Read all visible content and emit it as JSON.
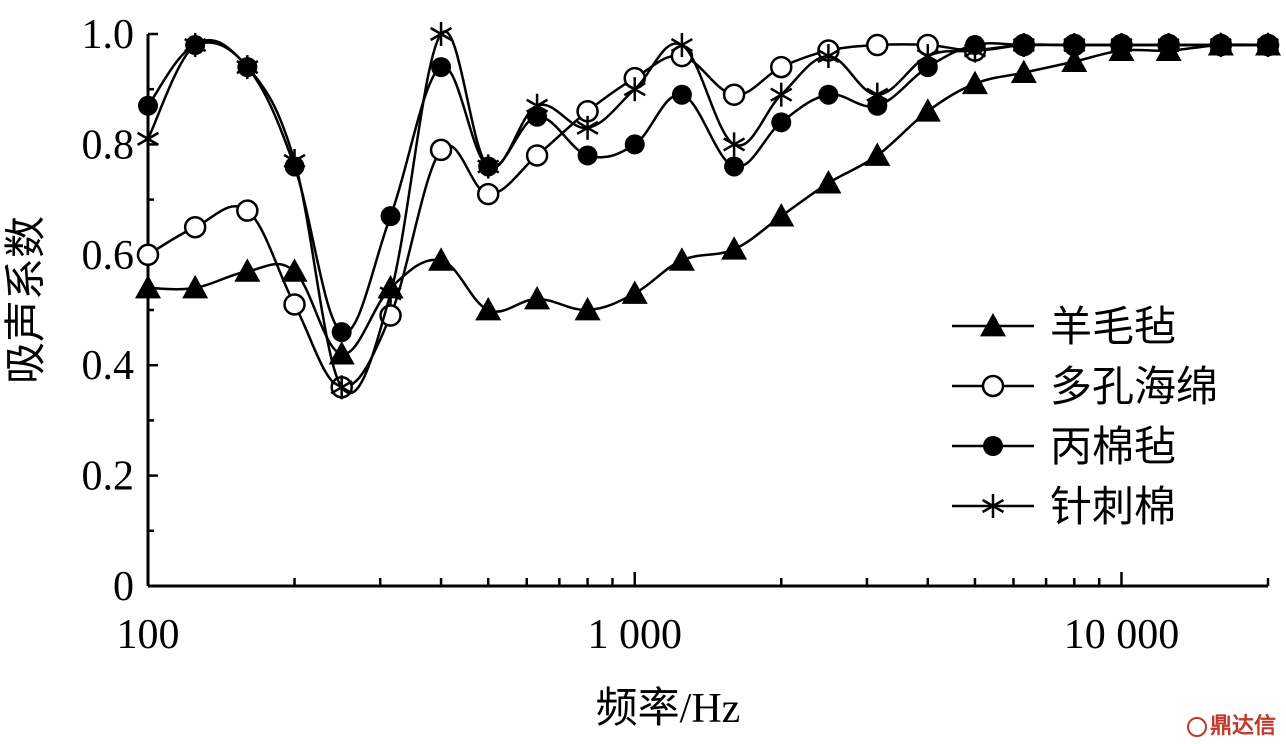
{
  "chart_data": {
    "type": "line",
    "xscale": "log",
    "xlim": [
      100,
      20000
    ],
    "ylim": [
      0,
      1.0
    ],
    "xlabel": "频率/Hz",
    "ylabel": "吸声系数",
    "x_ticks": [
      {
        "value": 100,
        "label": "100"
      },
      {
        "value": 1000,
        "label": "1 000"
      },
      {
        "value": 10000,
        "label": "10 000"
      }
    ],
    "y_ticks": [
      {
        "value": 0,
        "label": "0"
      },
      {
        "value": 0.2,
        "label": "0.2"
      },
      {
        "value": 0.4,
        "label": "0.4"
      },
      {
        "value": 0.6,
        "label": "0.6"
      },
      {
        "value": 0.8,
        "label": "0.8"
      },
      {
        "value": 1.0,
        "label": "1.0"
      }
    ],
    "legend_position": "right-middle",
    "x": [
      100,
      125,
      160,
      200,
      250,
      315,
      400,
      500,
      630,
      800,
      1000,
      1250,
      1600,
      2000,
      2500,
      3150,
      4000,
      5000,
      6300,
      8000,
      10000,
      12500,
      16000,
      20000
    ],
    "series": [
      {
        "name": "羊毛毡",
        "marker": "triangle",
        "values": [
          0.54,
          0.54,
          0.57,
          0.57,
          0.42,
          0.54,
          0.59,
          0.5,
          0.52,
          0.5,
          0.53,
          0.59,
          0.61,
          0.67,
          0.73,
          0.78,
          0.86,
          0.91,
          0.93,
          0.95,
          0.97,
          0.97,
          0.98,
          0.98
        ]
      },
      {
        "name": "多孔海绵",
        "marker": "open-circle",
        "values": [
          0.6,
          0.65,
          0.68,
          0.51,
          0.36,
          0.49,
          0.79,
          0.71,
          0.78,
          0.86,
          0.92,
          0.96,
          0.89,
          0.94,
          0.97,
          0.98,
          0.98,
          0.97,
          0.98,
          0.98,
          0.98,
          0.98,
          0.98,
          0.98
        ]
      },
      {
        "name": "丙棉毡",
        "marker": "filled-circle",
        "values": [
          0.87,
          0.98,
          0.94,
          0.76,
          0.46,
          0.67,
          0.94,
          0.76,
          0.85,
          0.78,
          0.8,
          0.89,
          0.76,
          0.84,
          0.89,
          0.87,
          0.94,
          0.98,
          0.98,
          0.98,
          0.98,
          0.98,
          0.98,
          0.98
        ]
      },
      {
        "name": "针刺棉",
        "marker": "asterisk",
        "values": [
          0.81,
          0.98,
          0.94,
          0.77,
          0.36,
          0.53,
          1.0,
          0.76,
          0.87,
          0.83,
          0.9,
          0.98,
          0.8,
          0.89,
          0.96,
          0.89,
          0.96,
          0.97,
          0.98,
          0.98,
          0.98,
          0.98,
          0.98,
          0.98
        ]
      }
    ]
  },
  "watermark": "鼎达信"
}
